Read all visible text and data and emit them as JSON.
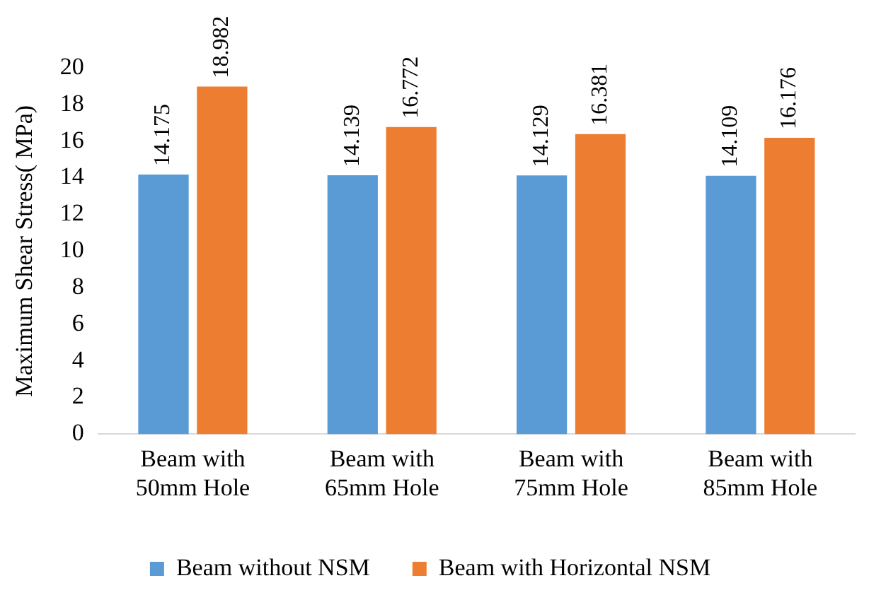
{
  "chart_data": {
    "type": "bar",
    "ylabel": "Maximum Shear Stress( MPa)",
    "categories": [
      "Beam with\n50mm Hole",
      "Beam with\n65mm Hole",
      "Beam with\n75mm Hole",
      "Beam with\n85mm Hole"
    ],
    "series": [
      {
        "name": "Beam without NSM",
        "color": "#5b9bd5",
        "values": [
          14.175,
          14.139,
          14.129,
          14.109
        ]
      },
      {
        "name": "Beam with Horizontal NSM",
        "color": "#ed7d31",
        "values": [
          18.982,
          16.772,
          16.381,
          16.176
        ]
      }
    ],
    "ylim": [
      0,
      20
    ],
    "yticks": [
      0,
      2,
      4,
      6,
      8,
      10,
      12,
      14,
      16,
      18,
      20
    ],
    "grid": false,
    "legend": "bottom",
    "data_labels": true
  }
}
